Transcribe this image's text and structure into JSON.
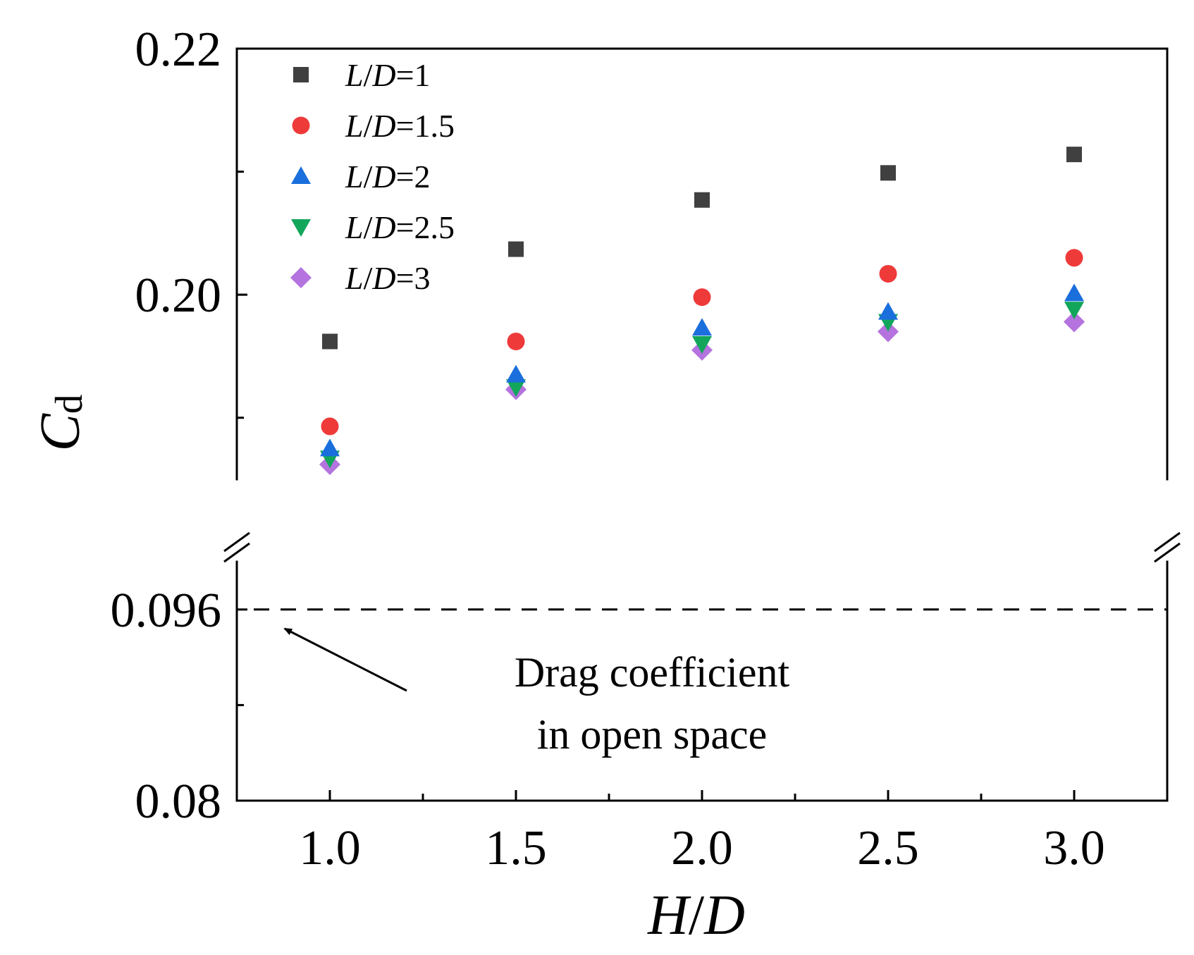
{
  "chart_data": {
    "type": "scatter",
    "x": [
      1.0,
      1.5,
      2.0,
      2.5,
      3.0
    ],
    "series": [
      {
        "name": "L/D=1",
        "marker": "square",
        "color": "#404040",
        "values": [
          0.1962,
          0.2037,
          0.2077,
          0.2099,
          0.2114
        ]
      },
      {
        "name": "L/D=1.5",
        "marker": "circle",
        "color": "#ef3a3a",
        "values": [
          0.1893,
          0.1962,
          0.1998,
          0.2017,
          0.203
        ]
      },
      {
        "name": "L/D=2",
        "marker": "triangle-up",
        "color": "#1a6fdc",
        "values": [
          0.1875,
          0.1935,
          0.1973,
          0.1986,
          0.2001
        ]
      },
      {
        "name": "L/D=2.5",
        "marker": "triangle-down",
        "color": "#12a65b",
        "values": [
          0.1867,
          0.1925,
          0.196,
          0.1978,
          0.1988
        ]
      },
      {
        "name": "L/D=3",
        "marker": "diamond",
        "color": "#b473de",
        "values": [
          0.1862,
          0.1923,
          0.1955,
          0.197,
          0.1978
        ]
      }
    ],
    "xlabel_parts": [
      "H",
      "/",
      "D"
    ],
    "ylabel_parts": [
      "C",
      "d"
    ],
    "xlim": [
      0.75,
      3.25
    ],
    "xticks": [
      1.0,
      1.5,
      2.0,
      2.5,
      3.0
    ],
    "xtick_labels": [
      "1.0",
      "1.5",
      "2.0",
      "2.5",
      "3.0"
    ],
    "y_upper_range": [
      0.185,
      0.22
    ],
    "y_upper_ticks": [
      0.2,
      0.22
    ],
    "y_upper_tick_labels": [
      "0.20",
      "0.22"
    ],
    "y_lower_range": [
      0.08,
      0.1
    ],
    "y_lower_ticks": [
      0.08,
      0.096
    ],
    "y_lower_tick_labels": [
      "0.08",
      "0.096"
    ],
    "axis_break": true,
    "reference_line": {
      "y": 0.096,
      "style": "dashed",
      "color": "#000000"
    },
    "annotation": {
      "lines": [
        "Drag coefficient",
        "in open space"
      ]
    },
    "legend": {
      "position": "top-left"
    }
  }
}
